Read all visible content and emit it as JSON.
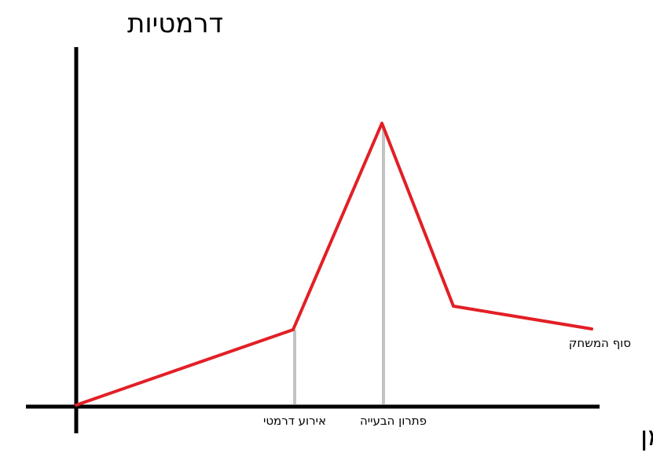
{
  "diagram": {
    "y_axis_label": "דרמטיות",
    "x_axis_label": "זמן",
    "curve_color": "#e21f26",
    "axis_color": "#000000",
    "marker_color": "#c3c3c3",
    "markers": {
      "dramatic_event": "אירוע דרמטי",
      "problem_solution": "פתרון הבעייה",
      "game_end": "סוף המשחק"
    }
  }
}
